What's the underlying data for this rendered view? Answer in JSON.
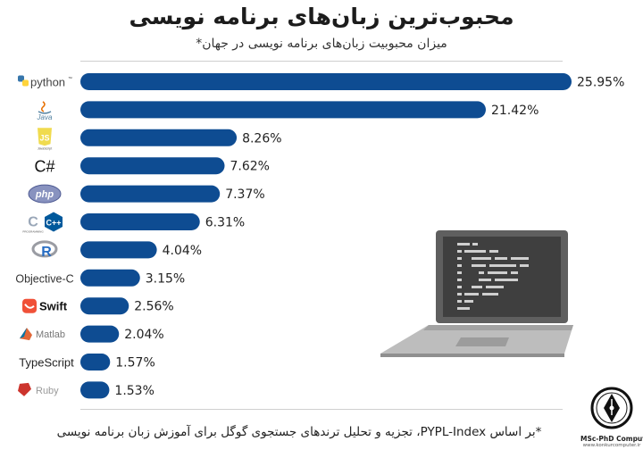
{
  "page": {
    "title": "محبوب‌ترین زبان‌های برنامه نویسی",
    "subtitle": "میزان محبوبیت زبان‌های برنامه نویسی در جهان*",
    "footnote": "*بر اساس PYPL-Index، تجزیه و تحلیل ترندهای جستجوی گوگل برای آموزش زبان برنامه نویسی"
  },
  "brand": {
    "name": "MSc-PhD Computer-IT",
    "url": "www.konkurcomputer.ir",
    "icon": "pen-nib-logo"
  },
  "colors": {
    "bar": "#0e4c92",
    "text": "#222222"
  },
  "illustration": {
    "icon": "laptop-code-icon"
  },
  "chart_data": {
    "type": "bar",
    "orientation": "horizontal",
    "categories": [
      "python",
      "Java",
      "JavaScript",
      "C#",
      "php",
      "C/C++",
      "R",
      "Objective-C",
      "Swift",
      "Matlab",
      "TypeScript",
      "Ruby"
    ],
    "category_logos": [
      "python-logo",
      "java-logo",
      "javascript-logo",
      "csharp-logo",
      "php-logo",
      "c-cpp-logo",
      "r-logo",
      "objective-c-logo",
      "swift-logo",
      "matlab-logo",
      "typescript-logo",
      "ruby-logo"
    ],
    "values": [
      25.95,
      21.42,
      8.26,
      7.62,
      7.37,
      6.31,
      4.04,
      3.15,
      2.56,
      2.04,
      1.57,
      1.53
    ],
    "value_labels": [
      "25.95%",
      "21.42%",
      "8.26%",
      "7.62%",
      "7.37%",
      "6.31%",
      "4.04%",
      "3.15%",
      "2.56%",
      "2.04%",
      "1.57%",
      "1.53%"
    ],
    "xlim": [
      0,
      25.95
    ],
    "grid": false,
    "legend": "none"
  }
}
